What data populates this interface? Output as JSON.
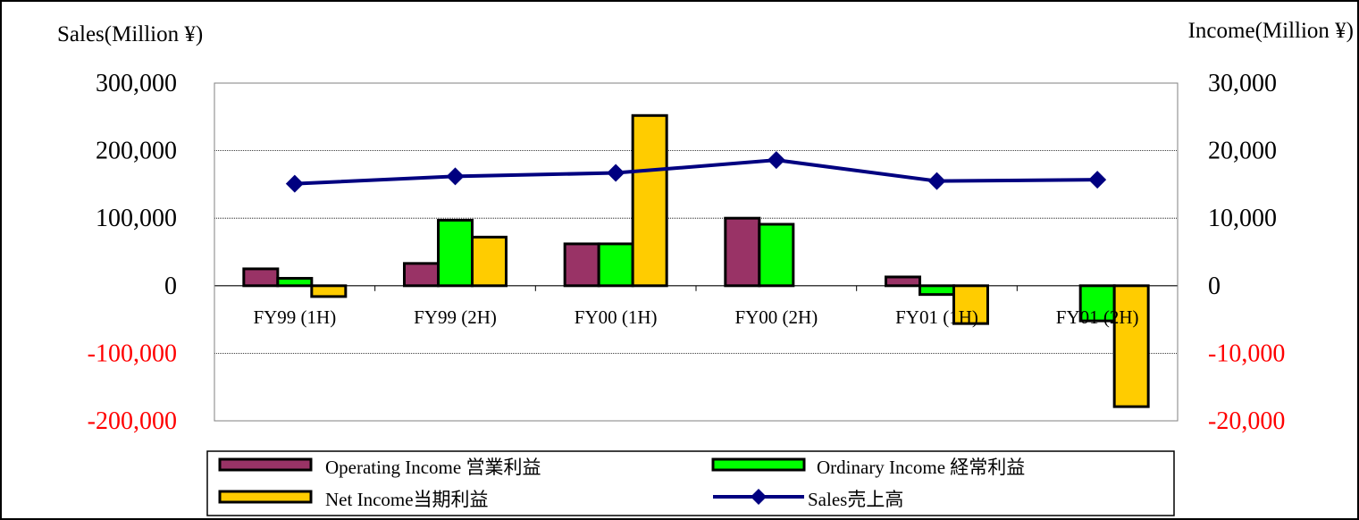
{
  "colors": {
    "operating": "#993366",
    "ordinary": "#00ff00",
    "net": "#ffcc00",
    "sales": "#000080",
    "negative_tick": "#ff0000",
    "text": "#000000"
  },
  "chart_data": {
    "type": "bar",
    "left_axis_title": "Sales(Million ¥)",
    "right_axis_title": "Income(Million ¥)",
    "categories": [
      "FY99 (1H)",
      "FY99 (2H)",
      "FY00 (1H)",
      "FY00 (2H)",
      "FY01 (1H)",
      "FY01 (2H)"
    ],
    "left_ticks": [
      "300,000",
      "200,000",
      "100,000",
      "0",
      "-100,000",
      "-200,000"
    ],
    "right_ticks": [
      "30,000",
      "20,000",
      "10,000",
      "0",
      "-10,000",
      "-20,000"
    ],
    "left_ylim": [
      -200000,
      300000
    ],
    "right_ylim": [
      -20000,
      30000
    ],
    "grid": true,
    "legend_position": "bottom",
    "series": [
      {
        "name": "Operating Income 営業利益",
        "type": "bar",
        "axis": "right",
        "color_key": "operating",
        "values": [
          2500,
          3300,
          6200,
          10000,
          1300,
          0
        ]
      },
      {
        "name": "Ordinary Income 経常利益",
        "type": "bar",
        "axis": "right",
        "color_key": "ordinary",
        "values": [
          1100,
          9700,
          6200,
          9100,
          -1300,
          -5200
        ]
      },
      {
        "name": "Net Income当期利益",
        "type": "bar",
        "axis": "right",
        "color_key": "net",
        "values": [
          -1600,
          7200,
          25200,
          0,
          -5600,
          -17900
        ]
      },
      {
        "name": "Sales売上高",
        "type": "line",
        "axis": "left",
        "color_key": "sales",
        "values": [
          151000,
          162000,
          167000,
          186000,
          155000,
          157000
        ]
      }
    ]
  }
}
